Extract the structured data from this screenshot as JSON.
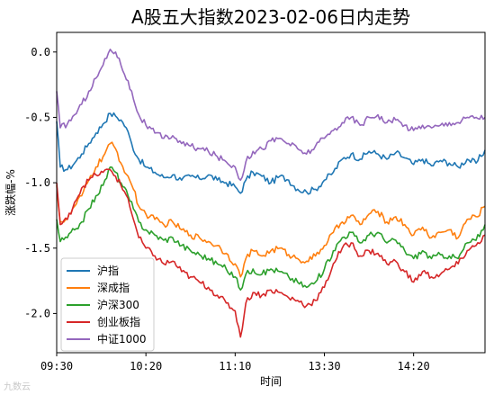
{
  "watermark": "九数云",
  "chart_data": {
    "type": "line",
    "title": "A股五大指数2023-02-06日内走势",
    "xlabel": "时间",
    "ylabel": "涨跌幅-%",
    "x_tick_labels": [
      "09:30",
      "10:20",
      "11:10",
      "13:30",
      "14:20"
    ],
    "x_tick_index": [
      0,
      50,
      100,
      150,
      200
    ],
    "x_count": 241,
    "ylim": [
      -2.3,
      0.15
    ],
    "y_ticks": [
      0.0,
      -0.5,
      -1.0,
      -1.5,
      -2.0
    ],
    "y_tick_labels": [
      "0.0",
      "-0.5",
      "-1.0",
      "-1.5",
      "-2.0"
    ],
    "grid": false,
    "legend_position": "lower-left",
    "series": [
      {
        "name": "沪指",
        "color": "#1f77b4",
        "keyframes": [
          [
            0,
            -0.53
          ],
          [
            2,
            -0.88
          ],
          [
            6,
            -0.9
          ],
          [
            10,
            -0.85
          ],
          [
            14,
            -0.78
          ],
          [
            18,
            -0.7
          ],
          [
            22,
            -0.62
          ],
          [
            26,
            -0.55
          ],
          [
            30,
            -0.47
          ],
          [
            33,
            -0.49
          ],
          [
            36,
            -0.52
          ],
          [
            39,
            -0.58
          ],
          [
            42,
            -0.7
          ],
          [
            45,
            -0.8
          ],
          [
            50,
            -0.88
          ],
          [
            55,
            -0.92
          ],
          [
            60,
            -0.96
          ],
          [
            65,
            -0.94
          ],
          [
            70,
            -0.98
          ],
          [
            75,
            -0.95
          ],
          [
            80,
            -0.97
          ],
          [
            85,
            -0.94
          ],
          [
            90,
            -0.98
          ],
          [
            95,
            -1.0
          ],
          [
            100,
            -1.03
          ],
          [
            103,
            -1.08
          ],
          [
            106,
            -0.98
          ],
          [
            110,
            -0.92
          ],
          [
            115,
            -0.95
          ],
          [
            120,
            -1.0
          ],
          [
            125,
            -0.95
          ],
          [
            130,
            -0.98
          ],
          [
            135,
            -1.05
          ],
          [
            140,
            -1.07
          ],
          [
            145,
            -1.05
          ],
          [
            150,
            -0.98
          ],
          [
            155,
            -0.92
          ],
          [
            160,
            -0.82
          ],
          [
            165,
            -0.78
          ],
          [
            170,
            -0.82
          ],
          [
            175,
            -0.76
          ],
          [
            180,
            -0.78
          ],
          [
            185,
            -0.82
          ],
          [
            190,
            -0.77
          ],
          [
            195,
            -0.81
          ],
          [
            200,
            -0.86
          ],
          [
            205,
            -0.82
          ],
          [
            210,
            -0.87
          ],
          [
            215,
            -0.83
          ],
          [
            220,
            -0.85
          ],
          [
            225,
            -0.88
          ],
          [
            230,
            -0.82
          ],
          [
            235,
            -0.85
          ],
          [
            240,
            -0.75
          ]
        ]
      },
      {
        "name": "深成指",
        "color": "#ff7f0e",
        "keyframes": [
          [
            0,
            -1.02
          ],
          [
            2,
            -1.3
          ],
          [
            6,
            -1.28
          ],
          [
            10,
            -1.18
          ],
          [
            14,
            -1.1
          ],
          [
            18,
            -0.98
          ],
          [
            22,
            -0.88
          ],
          [
            26,
            -0.8
          ],
          [
            30,
            -0.7
          ],
          [
            33,
            -0.74
          ],
          [
            36,
            -0.85
          ],
          [
            40,
            -0.95
          ],
          [
            43,
            -1.05
          ],
          [
            46,
            -1.18
          ],
          [
            50,
            -1.24
          ],
          [
            55,
            -1.28
          ],
          [
            60,
            -1.32
          ],
          [
            65,
            -1.3
          ],
          [
            70,
            -1.36
          ],
          [
            75,
            -1.4
          ],
          [
            80,
            -1.42
          ],
          [
            85,
            -1.45
          ],
          [
            90,
            -1.48
          ],
          [
            95,
            -1.54
          ],
          [
            100,
            -1.62
          ],
          [
            103,
            -1.72
          ],
          [
            106,
            -1.58
          ],
          [
            110,
            -1.52
          ],
          [
            115,
            -1.56
          ],
          [
            120,
            -1.52
          ],
          [
            125,
            -1.5
          ],
          [
            130,
            -1.55
          ],
          [
            135,
            -1.58
          ],
          [
            140,
            -1.6
          ],
          [
            145,
            -1.56
          ],
          [
            150,
            -1.48
          ],
          [
            155,
            -1.38
          ],
          [
            160,
            -1.3
          ],
          [
            165,
            -1.25
          ],
          [
            170,
            -1.32
          ],
          [
            175,
            -1.24
          ],
          [
            180,
            -1.22
          ],
          [
            185,
            -1.3
          ],
          [
            190,
            -1.26
          ],
          [
            195,
            -1.32
          ],
          [
            200,
            -1.4
          ],
          [
            205,
            -1.34
          ],
          [
            210,
            -1.42
          ],
          [
            215,
            -1.38
          ],
          [
            220,
            -1.36
          ],
          [
            225,
            -1.42
          ],
          [
            230,
            -1.28
          ],
          [
            235,
            -1.26
          ],
          [
            240,
            -1.18
          ]
        ]
      },
      {
        "name": "沪深300",
        "color": "#2ca02c",
        "keyframes": [
          [
            0,
            -1.28
          ],
          [
            2,
            -1.45
          ],
          [
            6,
            -1.42
          ],
          [
            10,
            -1.36
          ],
          [
            14,
            -1.3
          ],
          [
            18,
            -1.2
          ],
          [
            22,
            -1.1
          ],
          [
            26,
            -1.02
          ],
          [
            30,
            -0.88
          ],
          [
            33,
            -0.92
          ],
          [
            36,
            -1.0
          ],
          [
            40,
            -1.1
          ],
          [
            43,
            -1.2
          ],
          [
            46,
            -1.3
          ],
          [
            50,
            -1.36
          ],
          [
            55,
            -1.4
          ],
          [
            60,
            -1.44
          ],
          [
            65,
            -1.42
          ],
          [
            70,
            -1.48
          ],
          [
            75,
            -1.52
          ],
          [
            80,
            -1.55
          ],
          [
            85,
            -1.58
          ],
          [
            90,
            -1.62
          ],
          [
            95,
            -1.66
          ],
          [
            100,
            -1.72
          ],
          [
            103,
            -1.82
          ],
          [
            106,
            -1.7
          ],
          [
            110,
            -1.66
          ],
          [
            115,
            -1.7
          ],
          [
            120,
            -1.66
          ],
          [
            125,
            -1.68
          ],
          [
            130,
            -1.72
          ],
          [
            135,
            -1.76
          ],
          [
            140,
            -1.8
          ],
          [
            145,
            -1.76
          ],
          [
            150,
            -1.66
          ],
          [
            155,
            -1.52
          ],
          [
            160,
            -1.42
          ],
          [
            165,
            -1.38
          ],
          [
            170,
            -1.46
          ],
          [
            175,
            -1.4
          ],
          [
            180,
            -1.38
          ],
          [
            185,
            -1.46
          ],
          [
            190,
            -1.44
          ],
          [
            195,
            -1.52
          ],
          [
            200,
            -1.58
          ],
          [
            205,
            -1.52
          ],
          [
            210,
            -1.58
          ],
          [
            215,
            -1.55
          ],
          [
            220,
            -1.56
          ],
          [
            225,
            -1.58
          ],
          [
            230,
            -1.46
          ],
          [
            235,
            -1.44
          ],
          [
            240,
            -1.32
          ]
        ]
      },
      {
        "name": "创业板指",
        "color": "#d62728",
        "keyframes": [
          [
            0,
            -1.0
          ],
          [
            2,
            -1.32
          ],
          [
            6,
            -1.28
          ],
          [
            10,
            -1.15
          ],
          [
            14,
            -1.04
          ],
          [
            18,
            -0.98
          ],
          [
            22,
            -0.94
          ],
          [
            26,
            -0.92
          ],
          [
            30,
            -0.9
          ],
          [
            33,
            -0.95
          ],
          [
            36,
            -1.02
          ],
          [
            40,
            -1.12
          ],
          [
            43,
            -1.28
          ],
          [
            46,
            -1.42
          ],
          [
            50,
            -1.5
          ],
          [
            55,
            -1.56
          ],
          [
            60,
            -1.62
          ],
          [
            65,
            -1.6
          ],
          [
            70,
            -1.68
          ],
          [
            75,
            -1.72
          ],
          [
            80,
            -1.76
          ],
          [
            85,
            -1.8
          ],
          [
            90,
            -1.86
          ],
          [
            95,
            -1.92
          ],
          [
            100,
            -1.98
          ],
          [
            103,
            -2.18
          ],
          [
            106,
            -1.92
          ],
          [
            110,
            -1.84
          ],
          [
            115,
            -1.86
          ],
          [
            120,
            -1.82
          ],
          [
            125,
            -1.84
          ],
          [
            130,
            -1.88
          ],
          [
            135,
            -1.9
          ],
          [
            140,
            -1.94
          ],
          [
            145,
            -1.9
          ],
          [
            150,
            -1.8
          ],
          [
            155,
            -1.62
          ],
          [
            160,
            -1.5
          ],
          [
            165,
            -1.46
          ],
          [
            170,
            -1.56
          ],
          [
            175,
            -1.52
          ],
          [
            180,
            -1.54
          ],
          [
            185,
            -1.62
          ],
          [
            190,
            -1.6
          ],
          [
            195,
            -1.68
          ],
          [
            200,
            -1.76
          ],
          [
            205,
            -1.68
          ],
          [
            210,
            -1.72
          ],
          [
            215,
            -1.7
          ],
          [
            220,
            -1.66
          ],
          [
            225,
            -1.62
          ],
          [
            230,
            -1.52
          ],
          [
            235,
            -1.48
          ],
          [
            240,
            -1.4
          ]
        ]
      },
      {
        "name": "中证1000",
        "color": "#9467bd",
        "keyframes": [
          [
            0,
            -0.3
          ],
          [
            2,
            -0.58
          ],
          [
            6,
            -0.55
          ],
          [
            10,
            -0.48
          ],
          [
            14,
            -0.4
          ],
          [
            18,
            -0.3
          ],
          [
            22,
            -0.2
          ],
          [
            26,
            -0.1
          ],
          [
            30,
            0.02
          ],
          [
            33,
            0.0
          ],
          [
            36,
            -0.1
          ],
          [
            40,
            -0.22
          ],
          [
            43,
            -0.36
          ],
          [
            46,
            -0.48
          ],
          [
            50,
            -0.56
          ],
          [
            55,
            -0.62
          ],
          [
            60,
            -0.66
          ],
          [
            65,
            -0.64
          ],
          [
            70,
            -0.7
          ],
          [
            75,
            -0.72
          ],
          [
            80,
            -0.74
          ],
          [
            85,
            -0.76
          ],
          [
            90,
            -0.8
          ],
          [
            95,
            -0.84
          ],
          [
            100,
            -0.88
          ],
          [
            103,
            -0.98
          ],
          [
            106,
            -0.84
          ],
          [
            110,
            -0.76
          ],
          [
            115,
            -0.74
          ],
          [
            120,
            -0.68
          ],
          [
            125,
            -0.66
          ],
          [
            130,
            -0.7
          ],
          [
            135,
            -0.74
          ],
          [
            140,
            -0.78
          ],
          [
            145,
            -0.72
          ],
          [
            150,
            -0.66
          ],
          [
            155,
            -0.6
          ],
          [
            160,
            -0.54
          ],
          [
            165,
            -0.5
          ],
          [
            170,
            -0.56
          ],
          [
            175,
            -0.5
          ],
          [
            180,
            -0.48
          ],
          [
            185,
            -0.54
          ],
          [
            190,
            -0.52
          ],
          [
            195,
            -0.56
          ],
          [
            200,
            -0.6
          ],
          [
            205,
            -0.56
          ],
          [
            210,
            -0.58
          ],
          [
            215,
            -0.56
          ],
          [
            220,
            -0.54
          ],
          [
            225,
            -0.54
          ],
          [
            230,
            -0.5
          ],
          [
            235,
            -0.5
          ],
          [
            240,
            -0.5
          ]
        ]
      }
    ]
  }
}
